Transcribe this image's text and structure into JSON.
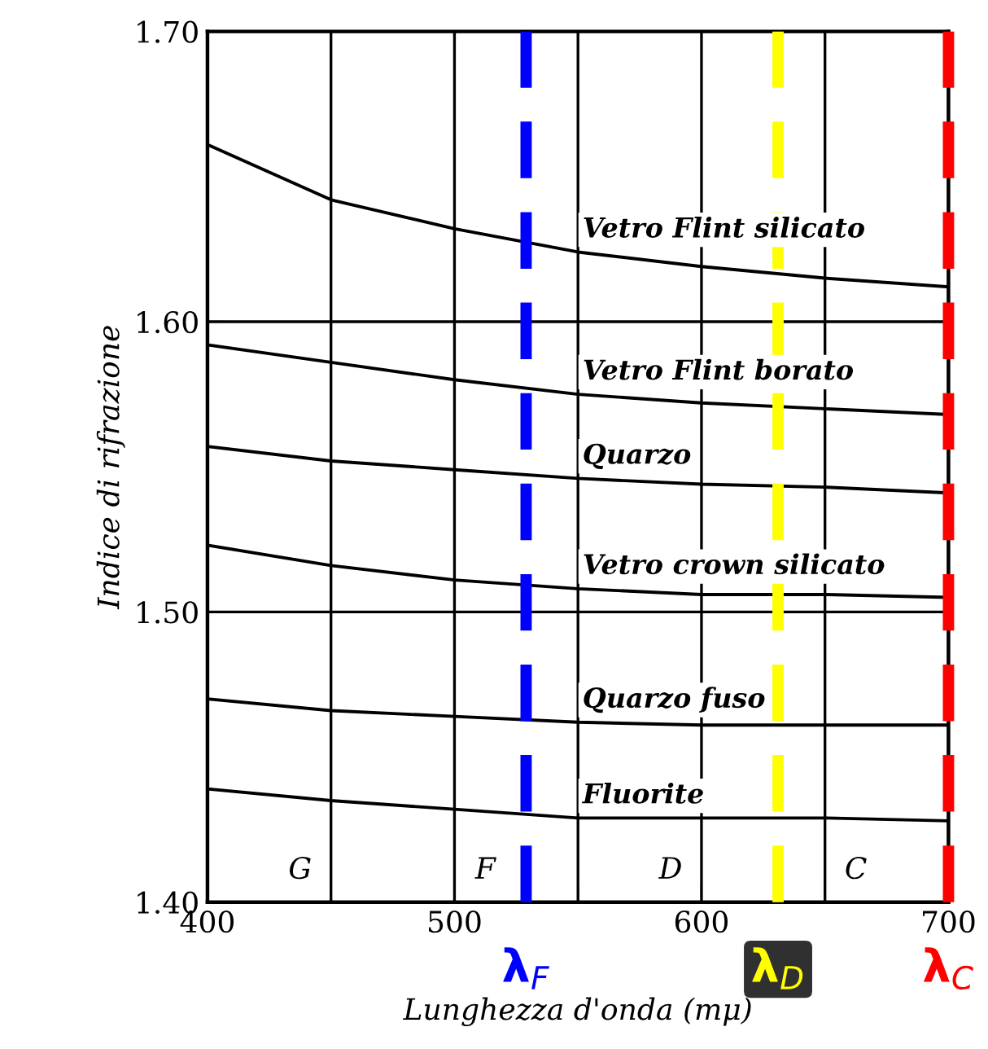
{
  "chart_data": {
    "type": "line",
    "xlabel": "Lunghezza d'onda (mμ)",
    "ylabel": "Indice di rifrazione",
    "x": [
      400,
      450,
      500,
      550,
      600,
      650,
      700
    ],
    "series": [
      {
        "name": "Vetro Flint silicato",
        "color": "#000000",
        "values": [
          1.661,
          1.642,
          1.632,
          1.624,
          1.619,
          1.615,
          1.612
        ]
      },
      {
        "name": "Vetro Flint borato",
        "color": "#000000",
        "values": [
          1.592,
          1.586,
          1.58,
          1.575,
          1.572,
          1.57,
          1.568
        ]
      },
      {
        "name": "Quarzo",
        "color": "#000000",
        "values": [
          1.557,
          1.552,
          1.549,
          1.546,
          1.544,
          1.543,
          1.541
        ]
      },
      {
        "name": "Vetro crown silicato",
        "color": "#000000",
        "values": [
          1.523,
          1.516,
          1.511,
          1.508,
          1.506,
          1.506,
          1.505
        ]
      },
      {
        "name": "Quarzo fuso",
        "color": "#000000",
        "values": [
          1.47,
          1.466,
          1.464,
          1.462,
          1.461,
          1.461,
          1.461
        ]
      },
      {
        "name": "Fluorite",
        "color": "#000000",
        "values": [
          1.439,
          1.435,
          1.432,
          1.429,
          1.429,
          1.429,
          1.428
        ]
      }
    ],
    "xlim": [
      400,
      700
    ],
    "ylim": [
      1.4,
      1.7
    ],
    "xticks": [
      400,
      {
        "value": 450,
        "label": null
      },
      500,
      {
        "value": 550,
        "label": null
      },
      600,
      {
        "value": 650,
        "label": null
      },
      700
    ],
    "yticks": [
      {
        "value": 1.4,
        "label": "1.40"
      },
      {
        "value": 1.5,
        "label": "1.50"
      },
      {
        "value": 1.6,
        "label": "1.60"
      },
      {
        "value": 1.7,
        "label": "1.70"
      }
    ],
    "grid": true,
    "legend": false,
    "marker": "none",
    "line_style": "solid",
    "ref_lines": [
      {
        "axis": "x",
        "value": 529,
        "label": "λ$_{F}$",
        "color": "#0000ff",
        "line_style": "dashed"
      },
      {
        "axis": "x",
        "value": 631,
        "label": "λ$_{D}$",
        "color": "#ffff00",
        "line_style": "dashed"
      },
      {
        "axis": "x",
        "value": 700,
        "label": "λ$_{C}$",
        "color": "#ff0000",
        "line_style": "dashed"
      }
    ],
    "annotations": [
      "G",
      "F",
      "D",
      "C"
    ]
  }
}
